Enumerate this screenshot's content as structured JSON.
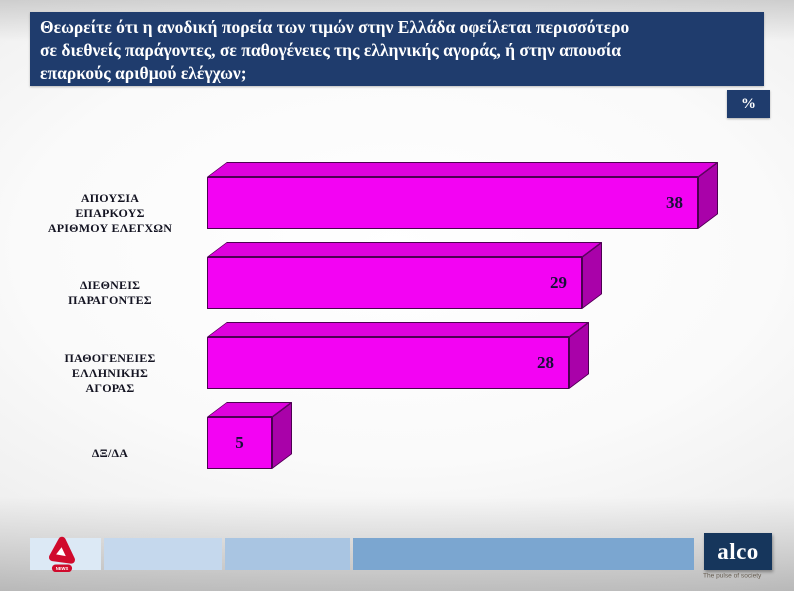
{
  "header": {
    "lines": [
      "Θεωρείτε ότι η ανοδική πορεία των τιμών στην Ελλάδα οφείλεται περισσότερο",
      "σε διεθνείς παράγοντες, σε παθογένειες της ελληνικής αγοράς, ή στην απουσία",
      "επαρκούς αριθμού ελέγχων;"
    ],
    "bg_color": "#1f3c6d"
  },
  "percent_badge": {
    "label": "%"
  },
  "chart_data": {
    "type": "bar",
    "orientation": "horizontal",
    "title": "",
    "xlabel": "",
    "ylabel": "",
    "unit": "%",
    "xlim": [
      0,
      40
    ],
    "grid": false,
    "legend": false,
    "value_labels_shown": true,
    "bar_style": "3d",
    "categories": [
      "ΑΠΟΥΣΙΑ ΕΠΑΡΚΟΥΣ ΑΡΙΘΜΟΥ ΕΛΕΓΧΩΝ",
      "ΔΙΕΘΝΕΙΣ ΠΑΡΑΓΟΝΤΕΣ",
      "ΠΑΘΟΓΕΝΕΙΕΣ ΕΛΛΗΝΙΚΗΣ ΑΓΟΡΑΣ",
      "ΔΞ/ΔΑ"
    ],
    "category_lines": [
      [
        "ΑΠΟΥΣΙΑ",
        "ΕΠΑΡΚΟΥΣ",
        "ΑΡΙΘΜΟΥ ΕΛΕΓΧΩΝ"
      ],
      [
        "ΔΙΕΘΝΕΙΣ",
        "ΠΑΡΑΓΟΝΤΕΣ"
      ],
      [
        "ΠΑΘΟΓΕΝΕΙΕΣ",
        "ΕΛΛΗΝΙΚΗΣ",
        "ΑΓΟΡΑΣ"
      ],
      [
        "ΔΞ/ΔΑ"
      ]
    ],
    "values": [
      38,
      29,
      28,
      5
    ],
    "bar_colors": {
      "front": "#f303f3",
      "top": "#dd02dd",
      "side": "#a902a9",
      "outline": "#4b0150"
    },
    "value_label_color": "#191038"
  },
  "footer": {
    "alpha_news": {
      "label": "NEWS",
      "color": "#d00a2c"
    },
    "alco": {
      "label": "alco",
      "tagline": "The pulse of society",
      "bg_color": "#16365c"
    },
    "strip_colors": [
      "#dce9f5",
      "#c5d8ed",
      "#a9c5e2",
      "#7ba6d0"
    ]
  }
}
